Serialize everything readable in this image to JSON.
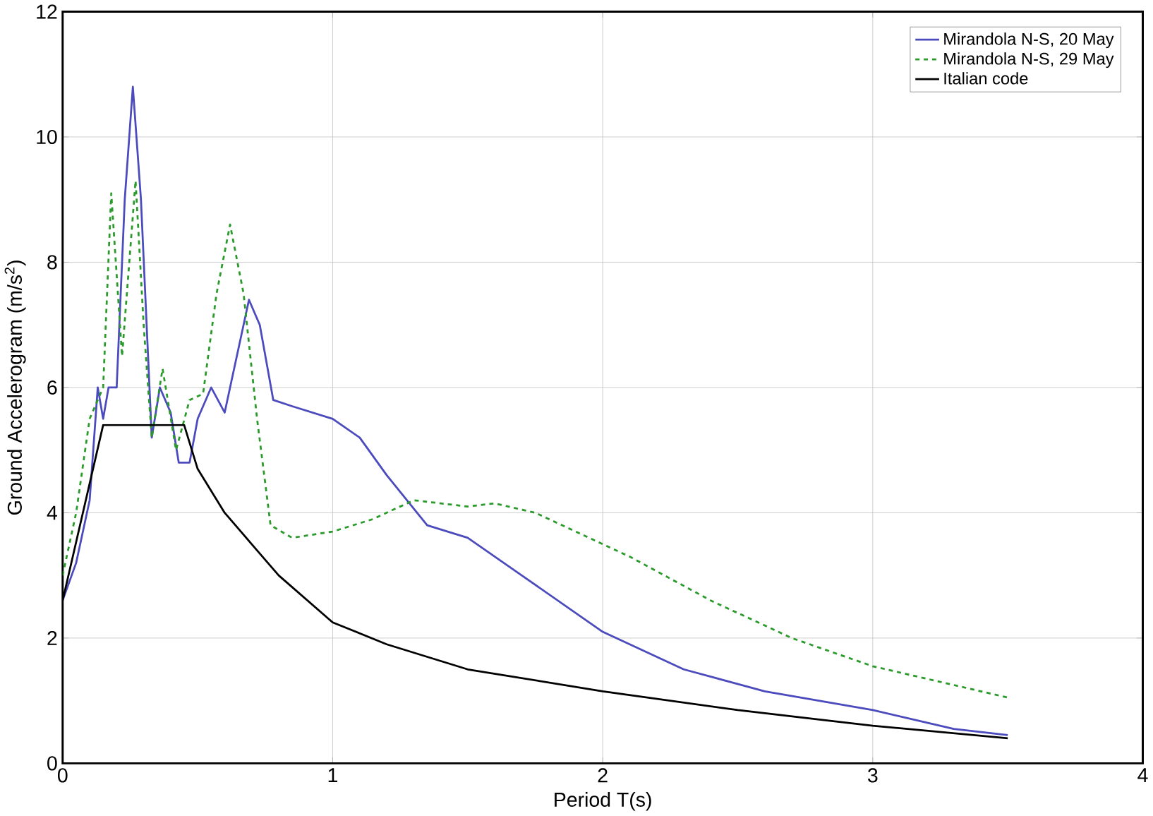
{
  "chart_data": {
    "type": "line",
    "xlabel": "Period T(s)",
    "ylabel": "Ground Accelerogram (m/s$^{2}$)",
    "xlim": [
      0,
      4
    ],
    "xticks": [
      0,
      1,
      2,
      3,
      4
    ],
    "ylim": [
      0,
      12
    ],
    "yticks": [
      0,
      2,
      4,
      6,
      8,
      10,
      12
    ],
    "grid": true,
    "legend": "top right",
    "series": [
      {
        "name": "Mirandola N-S, 20 May",
        "color": "#4b4bbd",
        "line_style": "solid",
        "x": [
          0,
          0.05,
          0.1,
          0.13,
          0.15,
          0.17,
          0.2,
          0.23,
          0.26,
          0.29,
          0.33,
          0.36,
          0.4,
          0.43,
          0.47,
          0.5,
          0.55,
          0.6,
          0.65,
          0.69,
          0.73,
          0.78,
          0.85,
          1.0,
          1.1,
          1.2,
          1.35,
          1.5,
          1.7,
          2.0,
          2.3,
          2.6,
          3.0,
          3.3,
          3.5
        ],
        "values": [
          2.6,
          3.2,
          4.2,
          6.0,
          5.5,
          6.0,
          6.0,
          9.0,
          10.8,
          9.0,
          5.2,
          6.0,
          5.6,
          4.8,
          4.8,
          5.5,
          6.0,
          5.6,
          6.6,
          7.4,
          7.0,
          5.8,
          5.7,
          5.5,
          5.2,
          4.6,
          3.8,
          3.6,
          3.0,
          2.1,
          1.5,
          1.15,
          0.85,
          0.55,
          0.45
        ]
      },
      {
        "name": "Mirandola N-S, 29 May",
        "color": "#2a9a2a",
        "line_style": "dashed",
        "x": [
          0,
          0.05,
          0.1,
          0.15,
          0.18,
          0.22,
          0.27,
          0.3,
          0.33,
          0.37,
          0.42,
          0.47,
          0.52,
          0.57,
          0.62,
          0.67,
          0.72,
          0.77,
          0.85,
          1.0,
          1.15,
          1.3,
          1.5,
          1.6,
          1.75,
          1.9,
          2.1,
          2.4,
          2.7,
          3.0,
          3.3,
          3.5
        ],
        "values": [
          3.0,
          4.0,
          5.5,
          6.0,
          9.1,
          6.5,
          9.3,
          7.0,
          5.2,
          6.3,
          5.0,
          5.8,
          5.9,
          7.5,
          8.6,
          7.5,
          5.5,
          3.8,
          3.6,
          3.7,
          3.9,
          4.2,
          4.1,
          4.15,
          4.0,
          3.7,
          3.3,
          2.6,
          2.0,
          1.55,
          1.25,
          1.05
        ]
      },
      {
        "name": "Italian code",
        "color": "#000000",
        "line_style": "solid",
        "x": [
          0,
          0.15,
          0.45,
          0.5,
          0.6,
          0.7,
          0.8,
          1.0,
          1.2,
          1.5,
          2.0,
          2.5,
          3.0,
          3.5
        ],
        "values": [
          2.6,
          5.4,
          5.4,
          4.7,
          4.0,
          3.5,
          3.0,
          2.25,
          1.9,
          1.5,
          1.15,
          0.85,
          0.6,
          0.4
        ]
      }
    ]
  }
}
